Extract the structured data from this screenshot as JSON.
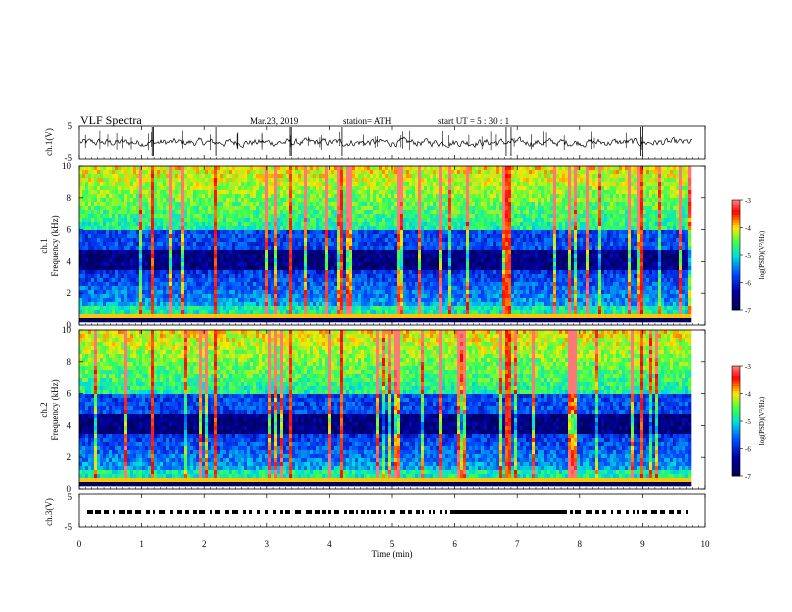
{
  "header": {
    "title": "VLF  Spectra",
    "date": "Mar.23, 2019",
    "station": "station= ATH",
    "start": "start  UT  =    5  : 30 : 1"
  },
  "chart_data": [
    {
      "id": "ch1-waveform",
      "type": "line",
      "ylabel": "ch.1(V)",
      "ylim": [
        -5,
        5
      ],
      "yticks": [
        "5",
        "-5"
      ],
      "xlim": [
        0,
        10
      ],
      "data_xmax": 9.8,
      "baseline": 0,
      "spikes_at_min": [
        1.17,
        1.19,
        2.19,
        3.37,
        3.39,
        4.2,
        6.82,
        6.9,
        8.97,
        9.0
      ]
    },
    {
      "id": "ch1-spectrogram",
      "type": "heatmap",
      "ylabel": "ch.1\nFrequency  (kHz)",
      "ylabel_lines": [
        "ch.1",
        "Frequency  (kHz)"
      ],
      "ylim": [
        0,
        10
      ],
      "yticks": [
        "0",
        "2",
        "4",
        "6",
        "8",
        "10"
      ],
      "xlim": [
        0,
        10
      ],
      "data_xmax": 9.8,
      "colorbar": {
        "label": "log(PSD)(V²/Hz)",
        "range": [
          -7,
          -3
        ],
        "ticks": [
          "-3",
          "-4",
          "-5",
          "-6",
          "-7"
        ]
      }
    },
    {
      "id": "ch2-spectrogram",
      "type": "heatmap",
      "ylabel": "ch.2\nFrequency  (kHz)",
      "ylabel_lines": [
        "ch.2",
        "Frequency  (kHz)"
      ],
      "ylim": [
        0,
        10
      ],
      "yticks": [
        "0",
        "2",
        "4",
        "6",
        "8",
        "10"
      ],
      "xlim": [
        0,
        10
      ],
      "data_xmax": 9.8,
      "colorbar": {
        "label": "log(PSD)(V²/Hz)",
        "range": [
          -7,
          -3
        ],
        "ticks": [
          "-3",
          "-4",
          "-5",
          "-6",
          "-7"
        ]
      }
    },
    {
      "id": "ch3-pulses",
      "type": "line",
      "ylabel": "ch.3(V)",
      "ylim": [
        -5,
        5
      ],
      "yticks": [
        "5",
        "-5"
      ],
      "xlim": [
        0,
        10
      ],
      "data_xmax": 9.8,
      "level": 0
    }
  ],
  "x_axis": {
    "label": "Time  (min)",
    "ticks": [
      "0",
      "1",
      "2",
      "3",
      "4",
      "5",
      "6",
      "7",
      "8",
      "9",
      "10"
    ]
  },
  "colors": {
    "low": "#000060",
    "mid_low": "#0040ff",
    "mid": "#00e0c0",
    "mid_high": "#40ff40",
    "high": "#ffe000",
    "peak": "#ff0000",
    "top": "#ffffff"
  }
}
